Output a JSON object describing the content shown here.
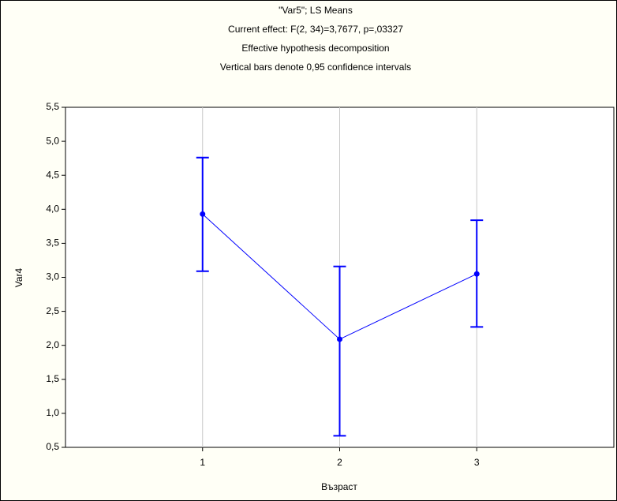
{
  "chart_data": {
    "type": "line",
    "title": "\"Var5\"; LS Means",
    "subtitles": [
      "Current effect: F(2, 34)=3,7677, p=,03327",
      "Effective hypothesis decomposition",
      "Vertical bars denote 0,95 confidence intervals"
    ],
    "x_label": "Възраст",
    "y_label": "Var4",
    "x": [
      1,
      2,
      3
    ],
    "series": [
      {
        "color": "#0000ff",
        "values": [
          3.93,
          2.09,
          3.05
        ],
        "ci_lower": [
          3.09,
          0.67,
          2.27
        ],
        "ci_upper": [
          4.76,
          3.16,
          3.84
        ]
      }
    ],
    "xlim": [
      0,
      4
    ],
    "xticks": [
      1,
      2,
      3
    ],
    "ylim": [
      0.5,
      5.5
    ],
    "yticks": [
      {
        "value": 0.5,
        "label": "0,5"
      },
      {
        "value": 1.0,
        "label": "1,0"
      },
      {
        "value": 1.5,
        "label": "1,5"
      },
      {
        "value": 2.0,
        "label": "2,0"
      },
      {
        "value": 2.5,
        "label": "2,5"
      },
      {
        "value": 3.0,
        "label": "3,0"
      },
      {
        "value": 3.5,
        "label": "3,5"
      },
      {
        "value": 4.0,
        "label": "4,0"
      },
      {
        "value": 4.5,
        "label": "4,5"
      },
      {
        "value": 5.0,
        "label": "5,0"
      },
      {
        "value": 5.5,
        "label": "5,5"
      }
    ],
    "grid": "x"
  }
}
